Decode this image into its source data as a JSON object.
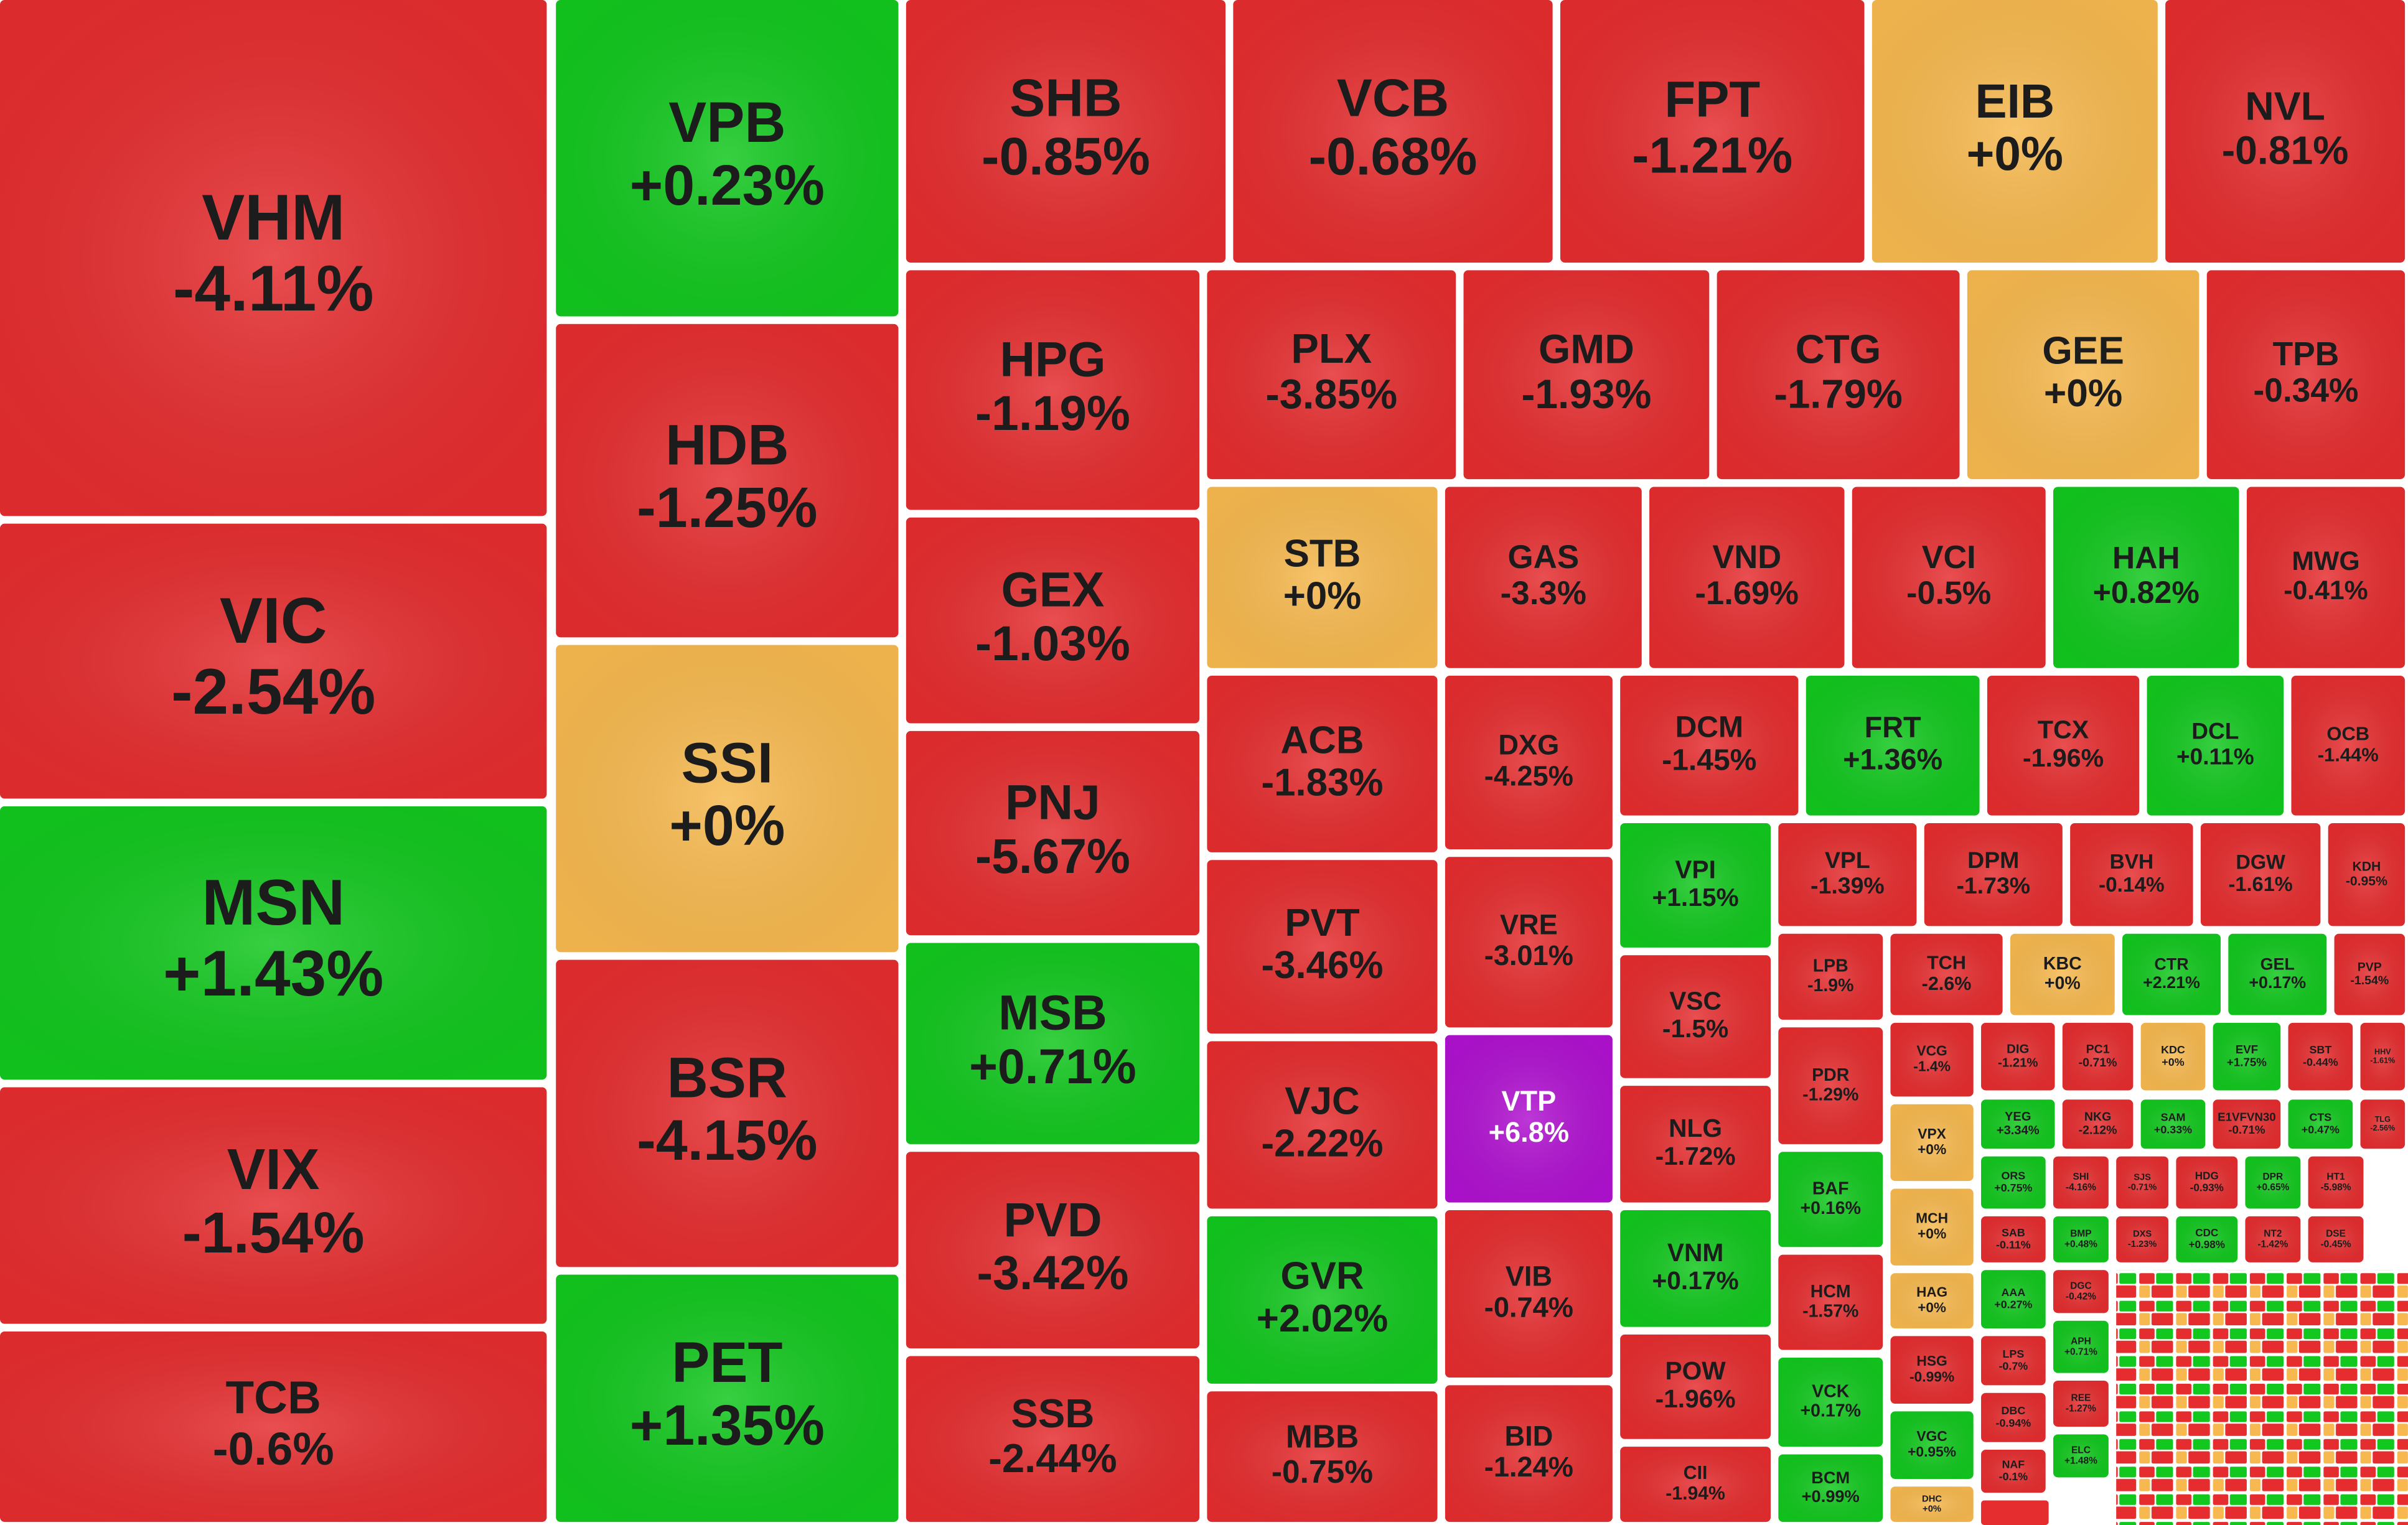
{
  "tiles": [
    {
      "ticker": "VHM",
      "change": "-4.11%",
      "color": "#e52d2f"
    },
    {
      "ticker": "VIC",
      "change": "-2.54%",
      "color": "#e52d2f"
    },
    {
      "ticker": "MSN",
      "change": "+1.43%",
      "color": "#12c71e"
    },
    {
      "ticker": "VIX",
      "change": "-1.54%",
      "color": "#e52d2f"
    },
    {
      "ticker": "TCB",
      "change": "-0.6%",
      "color": "#e52d2f"
    },
    {
      "ticker": "VPB",
      "change": "+0.23%",
      "color": "#12c71e"
    },
    {
      "ticker": "HDB",
      "change": "-1.25%",
      "color": "#e52d2f"
    },
    {
      "ticker": "SSI",
      "change": "+0%",
      "color": "#f7b94f"
    },
    {
      "ticker": "BSR",
      "change": "-4.15%",
      "color": "#e52d2f"
    },
    {
      "ticker": "PET",
      "change": "+1.35%",
      "color": "#12c71e"
    },
    {
      "ticker": "SHB",
      "change": "-0.85%",
      "color": "#e52d2f"
    },
    {
      "ticker": "VCB",
      "change": "-0.68%",
      "color": "#e52d2f"
    },
    {
      "ticker": "FPT",
      "change": "-1.21%",
      "color": "#e52d2f"
    },
    {
      "ticker": "EIB",
      "change": "+0%",
      "color": "#f7b94f"
    },
    {
      "ticker": "NVL",
      "change": "-0.81%",
      "color": "#e52d2f"
    },
    {
      "ticker": "HPG",
      "change": "-1.19%",
      "color": "#e52d2f"
    },
    {
      "ticker": "GEX",
      "change": "-1.03%",
      "color": "#e52d2f"
    },
    {
      "ticker": "PNJ",
      "change": "-5.67%",
      "color": "#e52d2f"
    },
    {
      "ticker": "MSB",
      "change": "+0.71%",
      "color": "#12c71e"
    },
    {
      "ticker": "PVD",
      "change": "-3.42%",
      "color": "#e52d2f"
    },
    {
      "ticker": "SSB",
      "change": "-2.44%",
      "color": "#e52d2f"
    },
    {
      "ticker": "PLX",
      "change": "-3.85%",
      "color": "#e52d2f"
    },
    {
      "ticker": "GMD",
      "change": "-1.93%",
      "color": "#e52d2f"
    },
    {
      "ticker": "CTG",
      "change": "-1.79%",
      "color": "#e52d2f"
    },
    {
      "ticker": "GEE",
      "change": "+0%",
      "color": "#f7b94f"
    },
    {
      "ticker": "TPB",
      "change": "-0.34%",
      "color": "#e52d2f"
    },
    {
      "ticker": "STB",
      "change": "+0%",
      "color": "#f7b94f"
    },
    {
      "ticker": "GAS",
      "change": "-3.3%",
      "color": "#e52d2f"
    },
    {
      "ticker": "VND",
      "change": "-1.69%",
      "color": "#e52d2f"
    },
    {
      "ticker": "VCI",
      "change": "-0.5%",
      "color": "#e52d2f"
    },
    {
      "ticker": "HAH",
      "change": "+0.82%",
      "color": "#12c71e"
    },
    {
      "ticker": "MWG",
      "change": "-0.41%",
      "color": "#e52d2f"
    },
    {
      "ticker": "ACB",
      "change": "-1.83%",
      "color": "#e52d2f"
    },
    {
      "ticker": "PVT",
      "change": "-3.46%",
      "color": "#e52d2f"
    },
    {
      "ticker": "VJC",
      "change": "-2.22%",
      "color": "#e52d2f"
    },
    {
      "ticker": "GVR",
      "change": "+2.02%",
      "color": "#12c71e"
    },
    {
      "ticker": "MBB",
      "change": "-0.75%",
      "color": "#e52d2f"
    },
    {
      "ticker": "DXG",
      "change": "-4.25%",
      "color": "#e52d2f"
    },
    {
      "ticker": "VRE",
      "change": "-3.01%",
      "color": "#e52d2f"
    },
    {
      "ticker": "VTP",
      "change": "+6.8%",
      "color": "#b012d0"
    },
    {
      "ticker": "VIB",
      "change": "-0.74%",
      "color": "#e52d2f"
    },
    {
      "ticker": "BID",
      "change": "-1.24%",
      "color": "#e52d2f"
    },
    {
      "ticker": "DCM",
      "change": "-1.45%",
      "color": "#e52d2f"
    },
    {
      "ticker": "FRT",
      "change": "+1.36%",
      "color": "#12c71e"
    },
    {
      "ticker": "TCX",
      "change": "-1.96%",
      "color": "#e52d2f"
    },
    {
      "ticker": "DCL",
      "change": "+0.11%",
      "color": "#12c71e"
    },
    {
      "ticker": "OCB",
      "change": "-1.44%",
      "color": "#e52d2f"
    },
    {
      "ticker": "VPI",
      "change": "+1.15%",
      "color": "#12c71e"
    },
    {
      "ticker": "VSC",
      "change": "-1.5%",
      "color": "#e52d2f"
    },
    {
      "ticker": "NLG",
      "change": "-1.72%",
      "color": "#e52d2f"
    },
    {
      "ticker": "VNM",
      "change": "+0.17%",
      "color": "#12c71e"
    },
    {
      "ticker": "POW",
      "change": "-1.96%",
      "color": "#e52d2f"
    },
    {
      "ticker": "CII",
      "change": "-1.94%",
      "color": "#e52d2f"
    },
    {
      "ticker": "VPL",
      "change": "-1.39%",
      "color": "#e52d2f"
    },
    {
      "ticker": "DPM",
      "change": "-1.73%",
      "color": "#e52d2f"
    },
    {
      "ticker": "BVH",
      "change": "-0.14%",
      "color": "#e52d2f"
    },
    {
      "ticker": "DGW",
      "change": "-1.61%",
      "color": "#e52d2f"
    },
    {
      "ticker": "KDH",
      "change": "-0.95%",
      "color": "#e52d2f"
    },
    {
      "ticker": "LPB",
      "change": "-1.9%",
      "color": "#e52d2f"
    },
    {
      "ticker": "PDR",
      "change": "-1.29%",
      "color": "#e52d2f"
    },
    {
      "ticker": "BAF",
      "change": "+0.16%",
      "color": "#12c71e"
    },
    {
      "ticker": "HCM",
      "change": "-1.57%",
      "color": "#e52d2f"
    },
    {
      "ticker": "VCK",
      "change": "+0.17%",
      "color": "#12c71e"
    },
    {
      "ticker": "BCM",
      "change": "+0.99%",
      "color": "#12c71e"
    },
    {
      "ticker": "TCH",
      "change": "-2.6%",
      "color": "#e52d2f"
    },
    {
      "ticker": "KBC",
      "change": "+0%",
      "color": "#f7b94f"
    },
    {
      "ticker": "CTR",
      "change": "+2.21%",
      "color": "#12c71e"
    },
    {
      "ticker": "GEL",
      "change": "+0.17%",
      "color": "#12c71e"
    },
    {
      "ticker": "PVP",
      "change": "-1.54%",
      "color": "#e52d2f"
    },
    {
      "ticker": "VCG",
      "change": "-1.4%",
      "color": "#e52d2f"
    },
    {
      "ticker": "VPX",
      "change": "+0%",
      "color": "#f7b94f"
    },
    {
      "ticker": "MCH",
      "change": "+0%",
      "color": "#f7b94f"
    },
    {
      "ticker": "HAG",
      "change": "+0%",
      "color": "#f7b94f"
    },
    {
      "ticker": "HSG",
      "change": "-0.99%",
      "color": "#e52d2f"
    },
    {
      "ticker": "VGC",
      "change": "+0.95%",
      "color": "#12c71e"
    },
    {
      "ticker": "DHC",
      "change": "+0%",
      "color": "#f7b94f"
    },
    {
      "ticker": "DIG",
      "change": "-1.21%",
      "color": "#e52d2f"
    },
    {
      "ticker": "PC1",
      "change": "-0.71%",
      "color": "#e52d2f"
    },
    {
      "ticker": "KDC",
      "change": "+0%",
      "color": "#f7b94f"
    },
    {
      "ticker": "EVF",
      "change": "+1.75%",
      "color": "#12c71e"
    },
    {
      "ticker": "SBT",
      "change": "-0.44%",
      "color": "#e52d2f"
    },
    {
      "ticker": "HHV",
      "change": "-1.61%",
      "color": "#e52d2f"
    },
    {
      "ticker": "YEG",
      "change": "+3.34%",
      "color": "#12c71e"
    },
    {
      "ticker": "NKG",
      "change": "-2.12%",
      "color": "#e52d2f"
    },
    {
      "ticker": "SAM",
      "change": "+0.33%",
      "color": "#12c71e"
    },
    {
      "ticker": "E1VFVN30",
      "change": "-0.71%",
      "color": "#e52d2f"
    },
    {
      "ticker": "CTS",
      "change": "+0.47%",
      "color": "#12c71e"
    },
    {
      "ticker": "TLG",
      "change": "-2.56%",
      "color": "#e52d2f"
    },
    {
      "ticker": "ORS",
      "change": "+0.75%",
      "color": "#12c71e"
    },
    {
      "ticker": "SHI",
      "change": "-4.16%",
      "color": "#e52d2f"
    },
    {
      "ticker": "SJS",
      "change": "-0.71%",
      "color": "#e52d2f"
    },
    {
      "ticker": "HDG",
      "change": "-0.93%",
      "color": "#e52d2f"
    },
    {
      "ticker": "DPR",
      "change": "+0.65%",
      "color": "#12c71e"
    },
    {
      "ticker": "HT1",
      "change": "-5.98%",
      "color": "#e52d2f"
    },
    {
      "ticker": "SAB",
      "change": "-0.11%",
      "color": "#e52d2f"
    },
    {
      "ticker": "BMP",
      "change": "+0.48%",
      "color": "#12c71e"
    },
    {
      "ticker": "DXS",
      "change": "-1.23%",
      "color": "#e52d2f"
    },
    {
      "ticker": "CDC",
      "change": "+0.98%",
      "color": "#12c71e"
    },
    {
      "ticker": "NT2",
      "change": "-1.42%",
      "color": "#e52d2f"
    },
    {
      "ticker": "DSE",
      "change": "-0.45%",
      "color": "#e52d2f"
    },
    {
      "ticker": "AAA",
      "change": "+0.27%",
      "color": "#12c71e"
    },
    {
      "ticker": "DGC",
      "change": "-0.42%",
      "color": "#e52d2f"
    },
    {
      "ticker": "LPS",
      "change": "-0.7%",
      "color": "#e52d2f"
    },
    {
      "ticker": "APH",
      "change": "+0.71%",
      "color": "#12c71e"
    },
    {
      "ticker": "DBC",
      "change": "-0.94%",
      "color": "#e52d2f"
    },
    {
      "ticker": "REE",
      "change": "-1.27%",
      "color": "#e52d2f"
    },
    {
      "ticker": "NAF",
      "change": "-0.1%",
      "color": "#e52d2f"
    },
    {
      "ticker": "ELC",
      "change": "+1.48%",
      "color": "#12c71e"
    }
  ]
}
